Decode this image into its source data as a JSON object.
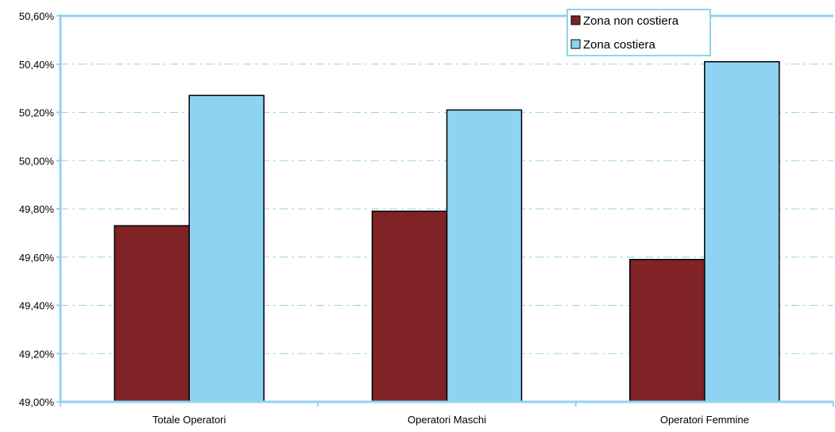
{
  "chart_data": {
    "type": "bar",
    "categories": [
      "Totale Operatori",
      "Operatori Maschi",
      "Operatori Femmine"
    ],
    "series": [
      {
        "name": "Zona non costiera",
        "values": [
          49.73,
          49.79,
          49.59
        ],
        "color": "#7f2326"
      },
      {
        "name": "Zona costiera",
        "values": [
          50.27,
          50.21,
          50.41
        ],
        "color": "#8fd3f2"
      }
    ],
    "ylim": [
      49.0,
      50.6
    ],
    "yticks": [
      "49,00%",
      "49,20%",
      "49,40%",
      "49,60%",
      "49,80%",
      "50,00%",
      "50,20%",
      "50,40%",
      "50,60%"
    ],
    "ytick_values": [
      49.0,
      49.2,
      49.4,
      49.6,
      49.8,
      50.0,
      50.2,
      50.4,
      50.6
    ],
    "legend_position": "top-right",
    "grid": true,
    "axis_color": "#8fd3f2",
    "grid_color": "#8fd3f2"
  }
}
